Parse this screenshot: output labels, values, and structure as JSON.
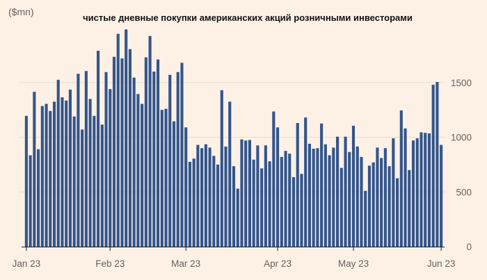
{
  "chart_data": {
    "type": "bar",
    "title": "чистые дневные покупки американских акций розничными инвесторами",
    "unit_label": "($mn)",
    "xlabel": "",
    "ylabel": "",
    "ylim": [
      0,
      2000
    ],
    "y_ticks": [
      0,
      500,
      1000,
      1500
    ],
    "y_tick_labels": [
      "0",
      "500",
      "1000",
      "1500"
    ],
    "y_axis_side": "right",
    "grid": true,
    "x_ticks": [
      {
        "label": "Jan 23",
        "index": 0
      },
      {
        "label": "Feb 23",
        "index": 21
      },
      {
        "label": "Mar 23",
        "index": 40
      },
      {
        "label": "Apr 23",
        "index": 63
      },
      {
        "label": "May 23",
        "index": 82
      },
      {
        "label": "Jun 23",
        "index": 104
      }
    ],
    "bar_color": "#33558b",
    "series": [
      {
        "values": [
          1195,
          835,
          1415,
          890,
          1285,
          1305,
          1240,
          1325,
          1525,
          1365,
          1335,
          1435,
          1190,
          1580,
          1070,
          1605,
          1350,
          1195,
          1790,
          1115,
          1595,
          1440,
          1735,
          1945,
          1720,
          1985,
          1805,
          1545,
          1395,
          1305,
          1730,
          1925,
          1600,
          1710,
          1250,
          1260,
          1570,
          1145,
          1595,
          1680,
          1090,
          775,
          805,
          930,
          900,
          935,
          905,
          830,
          750,
          1430,
          915,
          1325,
          735,
          530,
          980,
          970,
          975,
          795,
          925,
          715,
          925,
          780,
          1235,
          1090,
          820,
          875,
          850,
          635,
          1130,
          665,
          1180,
          940,
          895,
          900,
          1125,
          935,
          835,
          905,
          1005,
          720,
          1005,
          865,
          1105,
          915,
          820,
          510,
          740,
          770,
          905,
          810,
          900,
          735,
          990,
          625,
          1245,
          1080,
          700,
          970,
          990,
          1045,
          1040,
          1035,
          1480,
          1505,
          930
        ]
      }
    ]
  }
}
